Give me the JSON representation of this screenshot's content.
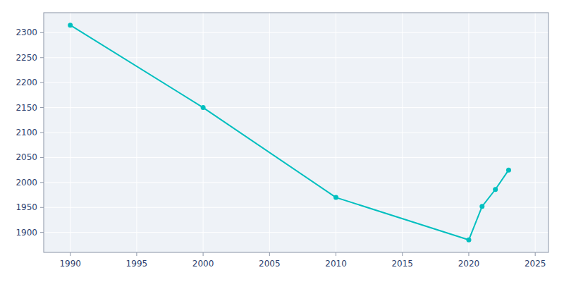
{
  "chart_data": {
    "type": "line",
    "x": [
      1990,
      2000,
      2010,
      2020,
      2021,
      2022,
      2023
    ],
    "values": [
      2315,
      2150,
      1970,
      1885,
      1952,
      1986,
      2025
    ],
    "color": "#00BFBF",
    "marker": "circle",
    "xlim": [
      1988,
      2026
    ],
    "ylim": [
      1860,
      2340
    ],
    "xticks": [
      1990,
      1995,
      2000,
      2005,
      2010,
      2015,
      2020,
      2025
    ],
    "yticks": [
      1900,
      1950,
      2000,
      2050,
      2100,
      2150,
      2200,
      2250,
      2300
    ],
    "grid": true
  }
}
